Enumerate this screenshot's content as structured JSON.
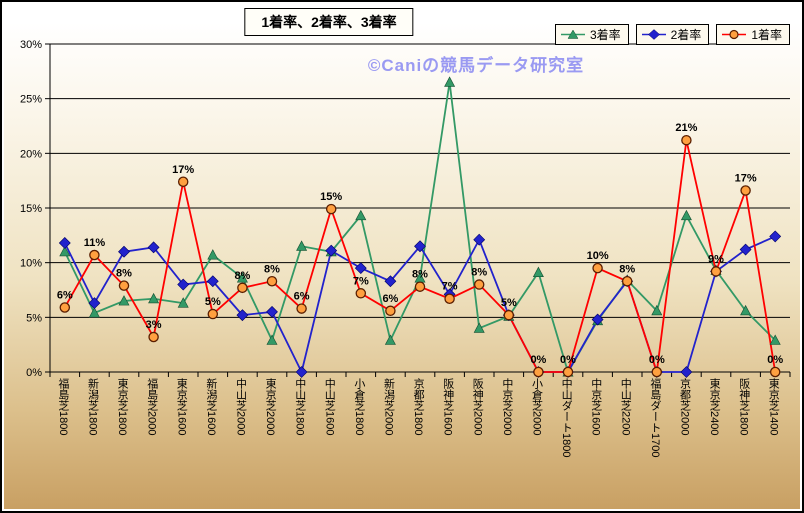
{
  "chart_data": {
    "type": "line",
    "title": "1着率、2着率、3着率",
    "watermark": "©Caniの競馬データ研究室",
    "legend_position": "top-right",
    "grid": "horizontal",
    "ylim": [
      0,
      30
    ],
    "ytick_step": 5,
    "yticks": [
      "0%",
      "5%",
      "10%",
      "15%",
      "20%",
      "25%",
      "30%"
    ],
    "categories": [
      "福島芝1800",
      "新潟芝1800",
      "東京芝1800",
      "福島芝2000",
      "東京芝1600",
      "新潟芝1600",
      "中山芝2000",
      "東京芝2000",
      "中山芝1800",
      "中山芝1600",
      "小倉芝1800",
      "新潟芝2000",
      "京都芝1800",
      "阪神芝1600",
      "阪神芝2000",
      "中京芝2000",
      "小倉芝2000",
      "中山ダート1800",
      "中京芝1600",
      "中山芝2200",
      "福島ダート1700",
      "京都芝2000",
      "東京芝2400",
      "阪神芝1800",
      "東京芝1400"
    ],
    "series": [
      {
        "name": "3着率",
        "marker": "triangle",
        "color": "#339966",
        "values": [
          11.0,
          5.4,
          6.5,
          6.7,
          6.3,
          10.7,
          8.6,
          2.9,
          11.5,
          11.0,
          14.3,
          2.9,
          8.6,
          26.5,
          4.0,
          5.1,
          9.1,
          0.0,
          4.7,
          8.4,
          5.6,
          14.3,
          9.3,
          5.6,
          2.9
        ]
      },
      {
        "name": "2着率",
        "marker": "diamond",
        "color": "#2222cc",
        "values": [
          11.8,
          6.3,
          11.0,
          11.4,
          8.0,
          8.3,
          5.2,
          5.5,
          0.0,
          11.1,
          9.5,
          8.3,
          11.5,
          7.1,
          12.1,
          5.2,
          0.0,
          0.0,
          4.8,
          8.3,
          0.0,
          0.0,
          9.2,
          11.2,
          12.4
        ]
      },
      {
        "name": "1着率",
        "marker": "circle",
        "color": "#ff0000",
        "marker_fill": "#ffa040",
        "marker_stroke": "#5a1e00",
        "values": [
          5.9,
          10.7,
          7.9,
          3.2,
          17.4,
          5.3,
          7.7,
          8.3,
          5.8,
          14.9,
          7.2,
          5.6,
          7.8,
          6.7,
          8.0,
          5.2,
          0.0,
          0.0,
          9.5,
          8.3,
          0.0,
          21.2,
          9.2,
          16.6,
          0.0
        ],
        "labels": [
          "6%",
          "11%",
          "8%",
          "3%",
          "17%",
          "5%",
          "8%",
          "8%",
          "6%",
          "15%",
          "7%",
          "6%",
          "8%",
          "7%",
          "8%",
          "5%",
          "0%",
          "0%",
          "10%",
          "8%",
          "0%",
          "21%",
          "9%",
          "17%",
          "0%"
        ]
      }
    ]
  }
}
